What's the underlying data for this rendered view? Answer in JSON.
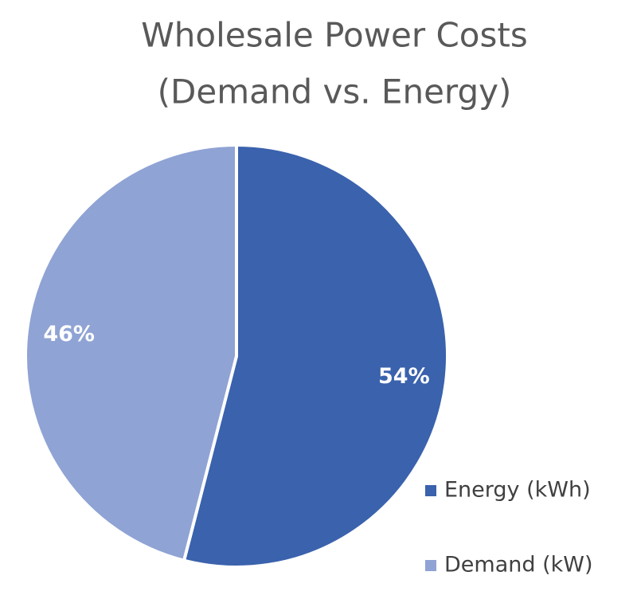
{
  "chart_data": {
    "type": "pie",
    "title": [
      "Wholesale Power Costs",
      "(Demand vs. Energy)"
    ],
    "categories": [
      "Energy (kWh)",
      "Demand (kW)"
    ],
    "values": [
      54,
      46
    ],
    "value_labels": [
      "54%",
      "46%"
    ],
    "colors": [
      "#3a62ad",
      "#8fa3d4"
    ],
    "legend": "right"
  }
}
